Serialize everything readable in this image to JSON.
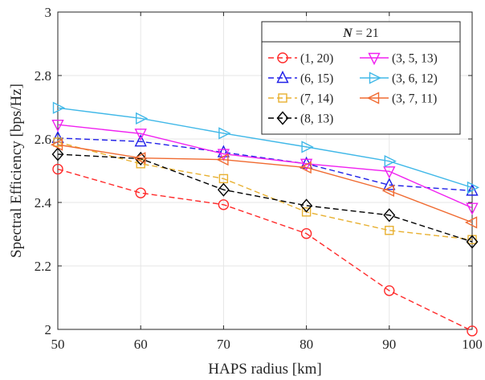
{
  "chart_data": {
    "type": "line",
    "title": "",
    "xlabel": "HAPS radius [km]",
    "ylabel": "Spectral Efficiency [bps/Hz]",
    "x": [
      50,
      60,
      70,
      80,
      90,
      100
    ],
    "xlim": [
      50,
      100
    ],
    "ylim": [
      2,
      3
    ],
    "xticks": [
      "50",
      "60",
      "70",
      "80",
      "90",
      "100"
    ],
    "yticks": [
      "2",
      "2.2",
      "2.4",
      "2.6",
      "2.8",
      "3"
    ],
    "grid": true,
    "legend_placement": "top-right",
    "legend_title": {
      "italic": "N",
      "rest": " = 21"
    },
    "series": [
      {
        "name": "(1, 20)",
        "color": "#FF2A2A",
        "dash": "dashed",
        "marker": "circle",
        "values": [
          2.505,
          2.43,
          2.393,
          2.302,
          2.122,
          1.995
        ]
      },
      {
        "name": "(6, 15)",
        "color": "#2020E8",
        "dash": "dashed",
        "marker": "triangle-up",
        "values": [
          2.603,
          2.592,
          2.558,
          2.522,
          2.455,
          2.437
        ]
      },
      {
        "name": "(7, 14)",
        "color": "#E8B030",
        "dash": "dashed",
        "marker": "square",
        "values": [
          2.59,
          2.522,
          2.475,
          2.37,
          2.312,
          2.283
        ]
      },
      {
        "name": "(8, 13)",
        "color": "#000000",
        "dash": "dashed",
        "marker": "diamond",
        "values": [
          2.552,
          2.538,
          2.44,
          2.39,
          2.36,
          2.276
        ]
      },
      {
        "name": "(3, 5, 13)",
        "color": "#F020F0",
        "dash": "solid",
        "marker": "triangle-down",
        "values": [
          2.645,
          2.617,
          2.553,
          2.522,
          2.498,
          2.383
        ]
      },
      {
        "name": "(3, 6, 12)",
        "color": "#40B8E8",
        "dash": "solid",
        "marker": "triangle-right",
        "values": [
          2.698,
          2.665,
          2.618,
          2.575,
          2.53,
          2.447
        ]
      },
      {
        "name": "(3, 7, 11)",
        "color": "#F06A30",
        "dash": "solid",
        "marker": "triangle-left",
        "values": [
          2.582,
          2.54,
          2.535,
          2.51,
          2.437,
          2.337
        ]
      }
    ]
  }
}
